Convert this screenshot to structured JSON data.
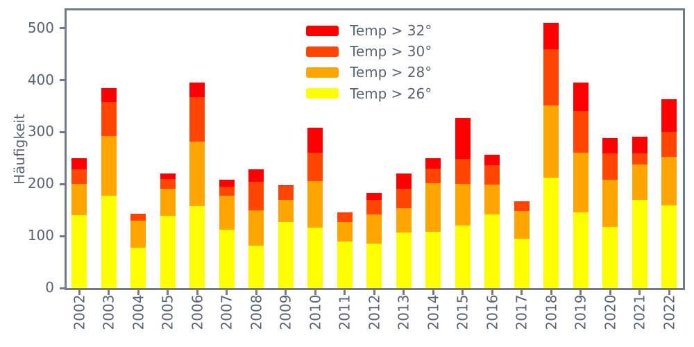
{
  "styles": {
    "text_color": "#5a6372",
    "spine_color": "#717b89",
    "background": "#ffffff"
  },
  "chart_data": {
    "type": "bar",
    "stacked": true,
    "title": "",
    "xlabel": "",
    "ylabel": "Häufigkeit",
    "ylim": [
      0,
      535
    ],
    "yticks": [
      0,
      100,
      200,
      300,
      400,
      500
    ],
    "grid": false,
    "legend_position": "upper center, frameless",
    "categories": [
      "2002",
      "2003",
      "2004",
      "2005",
      "2006",
      "2007",
      "2008",
      "2009",
      "2010",
      "2011",
      "2012",
      "2013",
      "2014",
      "2015",
      "2016",
      "2017",
      "2018",
      "2019",
      "2020",
      "2021",
      "2022"
    ],
    "series": [
      {
        "name": "Temp > 26°",
        "color": "#ffff00",
        "values": [
          140,
          177,
          77,
          139,
          157,
          112,
          82,
          127,
          116,
          90,
          86,
          107,
          108,
          120,
          141,
          95,
          213,
          145,
          118,
          169,
          159
        ]
      },
      {
        "name": "Temp > 28°",
        "color": "#ffa500",
        "values": [
          60,
          116,
          52,
          52,
          125,
          65,
          67,
          42,
          90,
          37,
          55,
          47,
          94,
          81,
          58,
          53,
          138,
          115,
          90,
          69,
          93
        ]
      },
      {
        "name": "Temp > 30°",
        "color": "#ff4500",
        "values": [
          28,
          65,
          14,
          19,
          86,
          18,
          55,
          27,
          54,
          18,
          29,
          37,
          28,
          47,
          38,
          19,
          108,
          81,
          51,
          21,
          48
        ]
      },
      {
        "name": "Temp > 32°",
        "color": "#ff0000",
        "values": [
          22,
          27,
          0,
          11,
          27,
          14,
          25,
          2,
          48,
          0,
          13,
          29,
          20,
          79,
          19,
          0,
          51,
          54,
          29,
          32,
          64
        ]
      }
    ],
    "totals": [
      250,
      385,
      143,
      221,
      395,
      209,
      229,
      198,
      308,
      145,
      183,
      220,
      250,
      327,
      256,
      167,
      510,
      395,
      288,
      291,
      364
    ]
  }
}
